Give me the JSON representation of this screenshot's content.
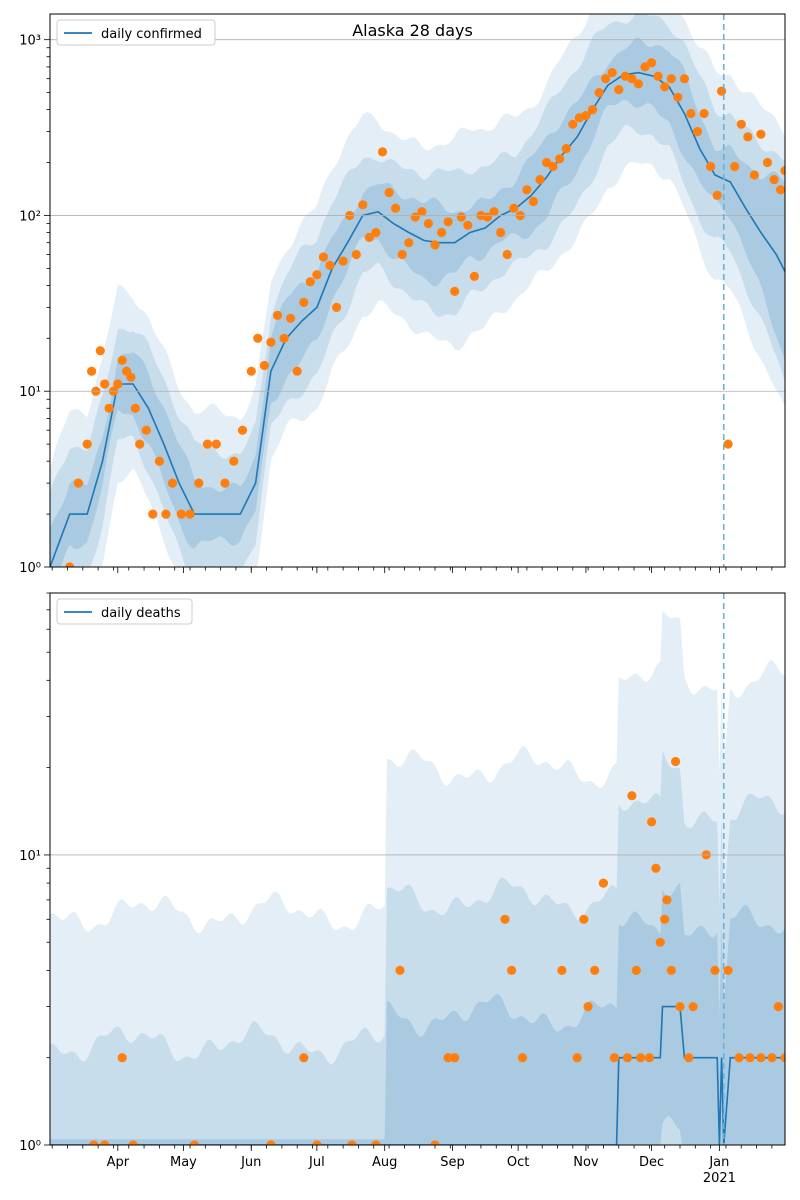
{
  "colors": {
    "line": "#1f77b4",
    "points": "#ff7f0e",
    "band": "#1f77b4",
    "grid": "#b0b0b0",
    "forecast_line": "#6ab0d8"
  },
  "chart_data": [
    {
      "type": "line",
      "title": "Alaska 28 days",
      "xlabel": "",
      "ylabel": "",
      "y_scale": "log",
      "ylim": [
        1,
        1400
      ],
      "xlim": [
        "2020-03-01",
        "2021-01-31"
      ],
      "grid": "horizontal major",
      "legend": {
        "position": "top-left",
        "entries": [
          "daily confirmed"
        ]
      },
      "y_tick_labels": [
        "10⁰",
        "10¹",
        "10²",
        "10³"
      ],
      "x_tick_labels": [
        "Apr",
        "May",
        "Jun",
        "Jul",
        "Aug",
        "Sep",
        "Oct",
        "Nov",
        "Dec",
        "Jan",
        "2021"
      ],
      "forecast_start": "2021-01-03",
      "series": [
        {
          "name": "daily confirmed",
          "kind": "model line",
          "x": [
            "2020-03-01",
            "2020-03-10",
            "2020-03-18",
            "2020-03-25",
            "2020-04-01",
            "2020-04-08",
            "2020-04-15",
            "2020-04-22",
            "2020-04-29",
            "2020-05-06",
            "2020-05-13",
            "2020-05-20",
            "2020-05-27",
            "2020-06-03",
            "2020-06-10",
            "2020-06-17",
            "2020-06-24",
            "2020-07-01",
            "2020-07-08",
            "2020-07-15",
            "2020-07-22",
            "2020-07-29",
            "2020-08-05",
            "2020-08-12",
            "2020-08-19",
            "2020-08-26",
            "2020-09-02",
            "2020-09-09",
            "2020-09-16",
            "2020-09-23",
            "2020-09-30",
            "2020-10-07",
            "2020-10-14",
            "2020-10-21",
            "2020-10-28",
            "2020-11-04",
            "2020-11-11",
            "2020-11-18",
            "2020-11-25",
            "2020-12-02",
            "2020-12-09",
            "2020-12-16",
            "2020-12-23",
            "2020-12-30",
            "2021-01-06",
            "2021-01-13",
            "2021-01-20",
            "2021-01-27",
            "2021-01-31"
          ],
          "y": [
            1,
            2,
            2,
            4,
            11,
            11,
            8,
            5,
            3,
            2,
            2,
            2,
            2,
            3,
            13,
            20,
            25,
            30,
            50,
            70,
            100,
            105,
            90,
            80,
            72,
            70,
            70,
            80,
            85,
            100,
            110,
            130,
            165,
            220,
            280,
            400,
            550,
            630,
            650,
            620,
            540,
            380,
            240,
            170,
            155,
            110,
            80,
            60,
            48
          ]
        },
        {
          "name": "",
          "kind": "observed points",
          "x": [
            "2020-03-10",
            "2020-03-14",
            "2020-03-18",
            "2020-03-20",
            "2020-03-22",
            "2020-03-24",
            "2020-03-26",
            "2020-03-28",
            "2020-03-30",
            "2020-04-01",
            "2020-04-03",
            "2020-04-05",
            "2020-04-07",
            "2020-04-09",
            "2020-04-11",
            "2020-04-14",
            "2020-04-17",
            "2020-04-20",
            "2020-04-23",
            "2020-04-26",
            "2020-04-30",
            "2020-05-04",
            "2020-05-08",
            "2020-05-12",
            "2020-05-16",
            "2020-05-20",
            "2020-05-24",
            "2020-05-28",
            "2020-06-01",
            "2020-06-04",
            "2020-06-07",
            "2020-06-10",
            "2020-06-13",
            "2020-06-16",
            "2020-06-19",
            "2020-06-22",
            "2020-06-25",
            "2020-06-28",
            "2020-07-01",
            "2020-07-04",
            "2020-07-07",
            "2020-07-10",
            "2020-07-13",
            "2020-07-16",
            "2020-07-19",
            "2020-07-22",
            "2020-07-25",
            "2020-07-28",
            "2020-07-31",
            "2020-08-03",
            "2020-08-06",
            "2020-08-09",
            "2020-08-12",
            "2020-08-15",
            "2020-08-18",
            "2020-08-21",
            "2020-08-24",
            "2020-08-27",
            "2020-08-30",
            "2020-09-02",
            "2020-09-05",
            "2020-09-08",
            "2020-09-11",
            "2020-09-14",
            "2020-09-17",
            "2020-09-20",
            "2020-09-23",
            "2020-09-26",
            "2020-09-29",
            "2020-10-02",
            "2020-10-05",
            "2020-10-08",
            "2020-10-11",
            "2020-10-14",
            "2020-10-17",
            "2020-10-20",
            "2020-10-23",
            "2020-10-26",
            "2020-10-29",
            "2020-11-01",
            "2020-11-04",
            "2020-11-07",
            "2020-11-10",
            "2020-11-13",
            "2020-11-16",
            "2020-11-19",
            "2020-11-22",
            "2020-11-25",
            "2020-11-28",
            "2020-12-01",
            "2020-12-04",
            "2020-12-07",
            "2020-12-10",
            "2020-12-13",
            "2020-12-16",
            "2020-12-19",
            "2020-12-22",
            "2020-12-25",
            "2020-12-28",
            "2020-12-31",
            "2021-01-02",
            "2021-01-05",
            "2021-01-08",
            "2021-01-11",
            "2021-01-14",
            "2021-01-17",
            "2021-01-20",
            "2021-01-23",
            "2021-01-26",
            "2021-01-29",
            "2021-01-31"
          ],
          "y": [
            1,
            3,
            5,
            13,
            10,
            17,
            11,
            8,
            10,
            11,
            15,
            13,
            12,
            8,
            5,
            6,
            2,
            4,
            2,
            3,
            2,
            2,
            3,
            5,
            5,
            3,
            4,
            6,
            13,
            20,
            14,
            19,
            27,
            20,
            26,
            13,
            32,
            42,
            46,
            58,
            52,
            30,
            55,
            100,
            60,
            115,
            75,
            80,
            230,
            135,
            110,
            60,
            70,
            98,
            105,
            90,
            68,
            80,
            92,
            37,
            98,
            88,
            45,
            100,
            98,
            105,
            80,
            60,
            110,
            100,
            140,
            120,
            160,
            200,
            190,
            210,
            240,
            330,
            360,
            370,
            400,
            500,
            600,
            650,
            520,
            620,
            600,
            560,
            700,
            740,
            620,
            540,
            600,
            470,
            600,
            380,
            300,
            380,
            190,
            130,
            510,
            5,
            190,
            330,
            280,
            170,
            290,
            200,
            160,
            140,
            180
          ]
        }
      ]
    },
    {
      "type": "line",
      "title": "",
      "xlabel": "",
      "ylabel": "",
      "y_scale": "log",
      "ylim": [
        1,
        80
      ],
      "xlim": [
        "2020-03-01",
        "2021-01-31"
      ],
      "grid": "horizontal major",
      "legend": {
        "position": "top-left",
        "entries": [
          "daily deaths"
        ]
      },
      "y_tick_labels": [
        "10⁰",
        "10¹"
      ],
      "x_tick_labels": [
        "Apr",
        "May",
        "Jun",
        "Jul",
        "Aug",
        "Sep",
        "Oct",
        "Nov",
        "Dec",
        "Jan",
        "2021"
      ],
      "forecast_start": "2021-01-03",
      "series": [
        {
          "name": "daily deaths",
          "kind": "model line",
          "x": [
            "2020-03-01",
            "2020-11-15",
            "2020-11-16",
            "2020-12-05",
            "2020-12-06",
            "2020-12-10",
            "2020-12-14",
            "2020-12-16",
            "2020-12-18",
            "2020-12-24",
            "2020-12-27",
            "2020-12-31",
            "2021-01-01",
            "2021-01-02",
            "2021-01-03",
            "2021-01-06",
            "2021-01-31"
          ],
          "y": [
            1,
            1,
            2,
            2,
            3,
            3,
            3,
            2,
            2,
            2,
            2,
            2,
            1,
            2,
            1,
            2,
            2
          ]
        },
        {
          "name": "",
          "kind": "observed points",
          "x": [
            "2020-03-21",
            "2020-03-26",
            "2020-04-03",
            "2020-04-08",
            "2020-05-06",
            "2020-06-10",
            "2020-06-25",
            "2020-07-01",
            "2020-07-17",
            "2020-07-28",
            "2020-08-08",
            "2020-08-24",
            "2020-08-30",
            "2020-09-02",
            "2020-09-25",
            "2020-09-28",
            "2020-10-03",
            "2020-10-21",
            "2020-10-28",
            "2020-10-31",
            "2020-11-02",
            "2020-11-05",
            "2020-11-09",
            "2020-11-14",
            "2020-11-20",
            "2020-11-22",
            "2020-11-24",
            "2020-11-26",
            "2020-11-30",
            "2020-12-01",
            "2020-12-03",
            "2020-12-05",
            "2020-12-07",
            "2020-12-08",
            "2020-12-10",
            "2020-12-12",
            "2020-12-14",
            "2020-12-18",
            "2020-12-20",
            "2020-12-26",
            "2020-12-30",
            "2021-01-05",
            "2021-01-10",
            "2021-01-15",
            "2021-01-20",
            "2021-01-25",
            "2021-01-28",
            "2021-01-31"
          ],
          "y": [
            1,
            1,
            2,
            1,
            1,
            1,
            2,
            1,
            1,
            1,
            4,
            1,
            2,
            2,
            6,
            4,
            2,
            4,
            2,
            6,
            3,
            4,
            8,
            2,
            2,
            16,
            4,
            2,
            2,
            13,
            9,
            5,
            6,
            7,
            4,
            21,
            3,
            2,
            3,
            10,
            4,
            4,
            2,
            2,
            2,
            2,
            3,
            2
          ]
        }
      ]
    }
  ]
}
